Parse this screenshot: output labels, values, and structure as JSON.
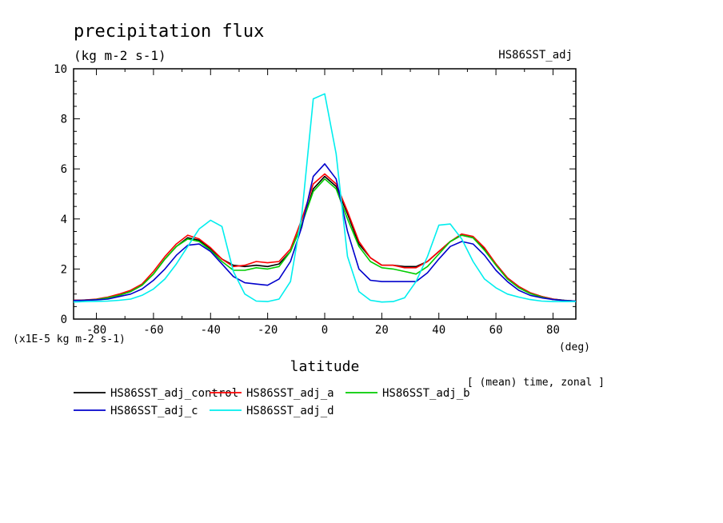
{
  "header": {
    "title": "precipitation flux",
    "units": "(kg m-2 s-1)",
    "dataset": "HS86SST_adj",
    "note": "[ (mean) time, zonal ]"
  },
  "axes": {
    "xlabel": "latitude",
    "xunit": "(deg)",
    "yscale_note": "(x1E-5 kg m-2 s-1)"
  },
  "chart_data": {
    "type": "line",
    "title": "precipitation flux",
    "xlabel": "latitude",
    "ylabel": "(x1E-5 kg m-2 s-1)",
    "xlim": [
      -88,
      88
    ],
    "ylim": [
      0,
      10
    ],
    "xticks": [
      -80,
      -60,
      -40,
      -20,
      0,
      20,
      40,
      60,
      80
    ],
    "yticks": [
      0,
      2,
      4,
      6,
      8,
      10
    ],
    "grid": false,
    "legend_position": "bottom",
    "x": [
      -88,
      -84,
      -80,
      -76,
      -72,
      -68,
      -64,
      -60,
      -56,
      -52,
      -48,
      -44,
      -40,
      -36,
      -32,
      -28,
      -24,
      -20,
      -16,
      -12,
      -8,
      -4,
      0,
      4,
      8,
      12,
      16,
      20,
      24,
      28,
      32,
      36,
      40,
      44,
      48,
      52,
      56,
      60,
      64,
      68,
      72,
      76,
      80,
      84,
      88
    ],
    "series": [
      {
        "name": "HS86SST_adj_control",
        "color": "#000000",
        "values": [
          0.75,
          0.76,
          0.78,
          0.85,
          0.95,
          1.1,
          1.35,
          1.8,
          2.4,
          2.9,
          3.25,
          3.15,
          2.8,
          2.4,
          2.15,
          2.1,
          2.15,
          2.1,
          2.2,
          2.7,
          3.8,
          5.2,
          5.7,
          5.3,
          4.2,
          3.0,
          2.45,
          2.15,
          2.15,
          2.1,
          2.1,
          2.3,
          2.7,
          3.1,
          3.35,
          3.25,
          2.8,
          2.2,
          1.65,
          1.3,
          1.05,
          0.9,
          0.8,
          0.75,
          0.72
        ]
      },
      {
        "name": "HS86SST_adj_a",
        "color": "#ff0000",
        "values": [
          0.75,
          0.76,
          0.8,
          0.88,
          1.0,
          1.15,
          1.4,
          1.9,
          2.5,
          3.0,
          3.35,
          3.2,
          2.85,
          2.4,
          2.1,
          2.15,
          2.3,
          2.25,
          2.3,
          2.8,
          4.0,
          5.4,
          5.8,
          5.4,
          4.3,
          3.1,
          2.45,
          2.15,
          2.15,
          2.05,
          2.05,
          2.3,
          2.7,
          3.1,
          3.4,
          3.3,
          2.85,
          2.2,
          1.65,
          1.3,
          1.05,
          0.9,
          0.8,
          0.74,
          0.72
        ]
      },
      {
        "name": "HS86SST_adj_b",
        "color": "#00cc00",
        "values": [
          0.74,
          0.75,
          0.78,
          0.85,
          0.95,
          1.1,
          1.35,
          1.8,
          2.4,
          2.9,
          3.2,
          3.1,
          2.75,
          2.3,
          1.95,
          1.95,
          2.05,
          2.0,
          2.1,
          2.7,
          3.8,
          5.1,
          5.6,
          5.2,
          4.0,
          2.9,
          2.3,
          2.05,
          2.0,
          1.9,
          1.8,
          2.1,
          2.6,
          3.1,
          3.35,
          3.25,
          2.75,
          2.15,
          1.6,
          1.25,
          1.02,
          0.88,
          0.78,
          0.74,
          0.72
        ]
      },
      {
        "name": "HS86SST_adj_c",
        "color": "#0000cc",
        "values": [
          0.74,
          0.75,
          0.77,
          0.8,
          0.9,
          1.0,
          1.2,
          1.55,
          2.0,
          2.55,
          2.95,
          3.0,
          2.7,
          2.2,
          1.7,
          1.45,
          1.4,
          1.35,
          1.6,
          2.3,
          3.7,
          5.7,
          6.2,
          5.6,
          3.5,
          2.0,
          1.55,
          1.5,
          1.5,
          1.5,
          1.5,
          1.85,
          2.4,
          2.9,
          3.1,
          3.0,
          2.55,
          1.95,
          1.5,
          1.15,
          0.95,
          0.85,
          0.78,
          0.74,
          0.72
        ]
      },
      {
        "name": "HS86SST_adj_d",
        "color": "#00eeee",
        "values": [
          0.68,
          0.7,
          0.71,
          0.72,
          0.75,
          0.8,
          0.95,
          1.2,
          1.6,
          2.2,
          2.9,
          3.6,
          3.95,
          3.7,
          1.9,
          1.0,
          0.72,
          0.7,
          0.8,
          1.5,
          4.2,
          8.8,
          9.0,
          6.6,
          2.5,
          1.1,
          0.75,
          0.68,
          0.7,
          0.85,
          1.5,
          2.5,
          3.75,
          3.8,
          3.2,
          2.3,
          1.6,
          1.25,
          1.0,
          0.88,
          0.78,
          0.72,
          0.7,
          0.7,
          0.7
        ]
      }
    ]
  }
}
